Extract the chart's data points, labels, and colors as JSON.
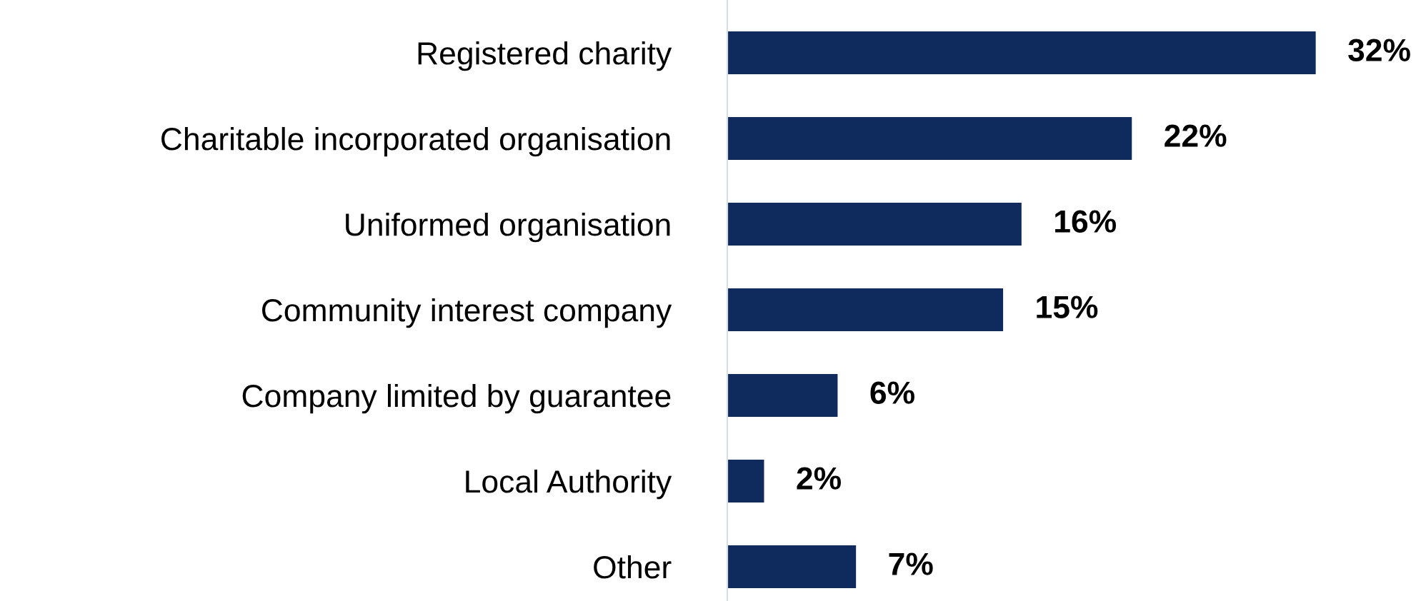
{
  "chart_data": {
    "type": "bar",
    "orientation": "horizontal",
    "categories": [
      "Registered charity",
      "Charitable incorporated organisation",
      "Uniformed organisation",
      "Community interest company",
      "Company limited by guarantee",
      "Local Authority",
      "Other"
    ],
    "values": [
      32,
      22,
      16,
      15,
      6,
      2,
      7
    ],
    "value_labels": [
      "32%",
      "22%",
      "16%",
      "15%",
      "6%",
      "2%",
      "7%"
    ],
    "color": "#0f2b5e",
    "grid": false,
    "legend": false
  }
}
